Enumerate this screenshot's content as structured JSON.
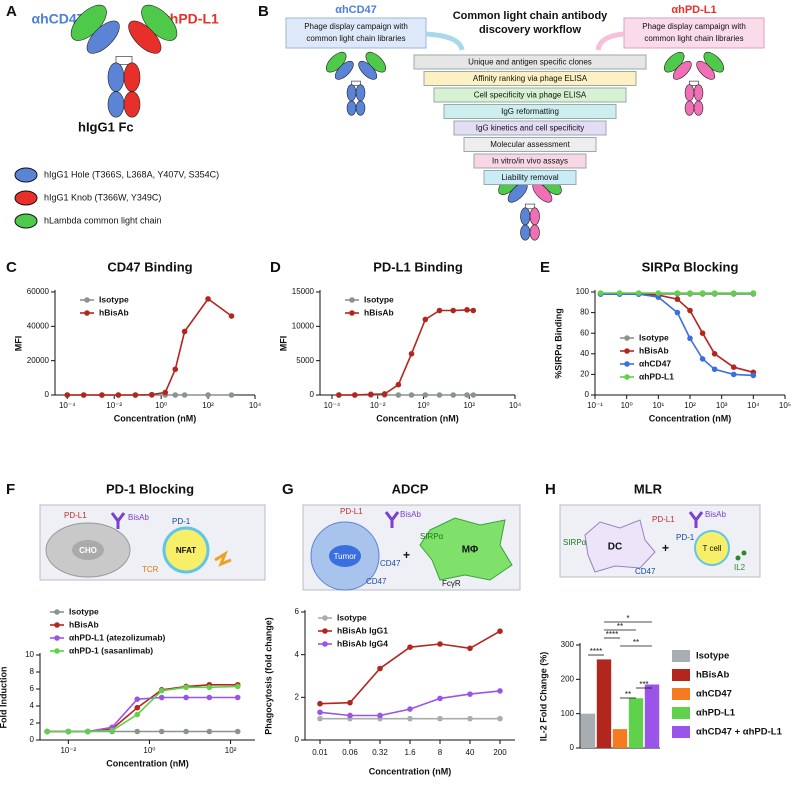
{
  "panel_labels": [
    "A",
    "B",
    "C",
    "D",
    "E",
    "F",
    "G",
    "H"
  ],
  "panel_a": {
    "antibody_labels": [
      "αhCD47",
      "αhPD-L1"
    ],
    "fc_label": "hIgG1 Fc",
    "legend": [
      "hIgG1 Hole (T366S, L368A, Y407V, S354C)",
      "hIgG1 Knob (T366W, Y349C)",
      "hLambda common light chain"
    ]
  },
  "panel_b": {
    "left": {
      "title": "αhCD47",
      "box": [
        "Phage display campaign with",
        "common light chain libraries"
      ]
    },
    "right": {
      "title": "αhPD-L1",
      "box": [
        "Phage display campaign with",
        "common light chain libraries"
      ]
    },
    "title": [
      "Common light chain antibody",
      "discovery workflow"
    ],
    "steps": [
      "Unique and antigen specific clones",
      "Affinity ranking via phage ELISA",
      "Cell specificity via phage ELISA",
      "IgG reformatting",
      "IgG kinetics and cell specificity",
      "Molecular assessment",
      "In vitro/in vivo assays",
      "Liability removal"
    ]
  },
  "panel_f_schematic": {
    "labels": [
      "PD-L1",
      "BisAb",
      "PD-1",
      "CHO",
      "NFAT",
      "TCR"
    ]
  },
  "panel_g_schematic": {
    "labels": [
      "PD-L1",
      "BisAb",
      "Tumor",
      "CD47",
      "CD47",
      "SIRPα",
      "MΦ",
      "FcγR",
      "+"
    ]
  },
  "panel_h_schematic": {
    "labels": [
      "SIRPα",
      "DC",
      "PD-L1",
      "BisAb",
      "CD47",
      "+",
      "PD-1",
      "T cell",
      "IL2"
    ]
  },
  "chart_data": [
    {
      "type": "line",
      "title": "CD47 Binding",
      "xlabel": "Concentration (nM)",
      "ylabel": "MFI",
      "xscale": "log",
      "xlim": [
        3e-05,
        10000
      ],
      "xticks": [
        {
          "value": 0.0001,
          "label": "10⁻⁴"
        },
        {
          "value": 0.01,
          "label": "10⁻²"
        },
        {
          "value": 1,
          "label": "10⁰"
        },
        {
          "value": 100,
          "label": "10²"
        },
        {
          "value": 10000,
          "label": "10⁴"
        }
      ],
      "ylim": [
        0,
        60000
      ],
      "yticks": [
        0,
        20000,
        40000,
        60000
      ],
      "legend": "upper left",
      "x": [
        0.0001,
        0.0005,
        0.003,
        0.015,
        0.08,
        0.4,
        1.5,
        4,
        10,
        100,
        1000
      ],
      "series": [
        {
          "name": "Isotype",
          "color": "#8a938e",
          "values": [
            0,
            0,
            0,
            0,
            0,
            0,
            0,
            0,
            0,
            0,
            0
          ]
        },
        {
          "name": "hBisAb",
          "color": "#b3261e",
          "values": [
            0,
            0,
            0,
            0,
            0,
            200,
            1500,
            15000,
            37000,
            56000,
            46000
          ]
        }
      ]
    },
    {
      "type": "line",
      "title": "PD-L1 Binding",
      "xlabel": "Concentration (nM)",
      "ylabel": "MFI",
      "xscale": "log",
      "xlim": [
        3e-05,
        10000
      ],
      "xticks": [
        {
          "value": 0.0001,
          "label": "10⁻⁴"
        },
        {
          "value": 0.01,
          "label": "10⁻²"
        },
        {
          "value": 1,
          "label": "10⁰"
        },
        {
          "value": 100,
          "label": "10²"
        },
        {
          "value": 10000,
          "label": "10⁴"
        }
      ],
      "ylim": [
        0,
        15000
      ],
      "yticks": [
        0,
        5000,
        10000,
        15000
      ],
      "legend": "upper left",
      "x": [
        0.0002,
        0.001,
        0.005,
        0.02,
        0.08,
        0.3,
        1.2,
        5,
        20,
        80,
        150
      ],
      "series": [
        {
          "name": "Isotype",
          "color": "#8a938e",
          "values": [
            0,
            0,
            0,
            0,
            0,
            0,
            0,
            0,
            0,
            0,
            0
          ]
        },
        {
          "name": "hBisAb",
          "color": "#b3261e",
          "values": [
            0,
            0,
            100,
            150,
            1500,
            6000,
            11000,
            12300,
            12300,
            12400,
            12300
          ]
        }
      ]
    },
    {
      "type": "line",
      "title": "SIRPα Blocking",
      "xlabel": "Concentration (nM)",
      "ylabel": "%SIRPα Binding",
      "xscale": "log",
      "xlim": [
        0.1,
        100000
      ],
      "xticks": [
        {
          "value": 0.1,
          "label": "10⁻¹"
        },
        {
          "value": 1,
          "label": "10⁰"
        },
        {
          "value": 10,
          "label": "10¹"
        },
        {
          "value": 100,
          "label": "10²"
        },
        {
          "value": 1000,
          "label": "10³"
        },
        {
          "value": 10000,
          "label": "10⁴"
        },
        {
          "value": 100000,
          "label": "10⁵"
        }
      ],
      "ylim": [
        0,
        100
      ],
      "yticks": [
        0,
        20,
        40,
        60,
        80,
        100
      ],
      "legend": "lower left",
      "x": [
        0.15,
        0.6,
        2.4,
        10,
        40,
        100,
        250,
        600,
        2400,
        10000
      ],
      "series": [
        {
          "name": "Isotype",
          "color": "#8a938e",
          "values": [
            98,
            98,
            98,
            98,
            98,
            98,
            98,
            98,
            98,
            98
          ]
        },
        {
          "name": "hBisAb",
          "color": "#b3261e",
          "values": [
            98,
            98,
            98,
            97,
            93,
            82,
            60,
            40,
            27,
            22
          ]
        },
        {
          "name": "αhCD47",
          "color": "#3b6fe0",
          "values": [
            98,
            98,
            98,
            95,
            80,
            55,
            35,
            25,
            20,
            19
          ]
        },
        {
          "name": "αhPD-L1",
          "color": "#5fd14a",
          "values": [
            99,
            99,
            99,
            99,
            99,
            99,
            99,
            99,
            99,
            99
          ]
        }
      ]
    },
    {
      "type": "line",
      "title": "PD-1 Blocking",
      "ylabel": "Fold Induction",
      "xlabel": "Concentration (nM)",
      "xscale": "log",
      "xlim": [
        0.002,
        400
      ],
      "xticks": [
        {
          "value": 0.01,
          "label": "10⁻²"
        },
        {
          "value": 1,
          "label": "10⁰"
        },
        {
          "value": 100,
          "label": "10²"
        }
      ],
      "ylim": [
        0,
        10
      ],
      "yticks": [
        0,
        2,
        4,
        6,
        8,
        10
      ],
      "legend": "upper left",
      "x": [
        0.003,
        0.01,
        0.03,
        0.12,
        0.5,
        2,
        8,
        30,
        150
      ],
      "series": [
        {
          "name": "Isotype",
          "color": "#8a938e",
          "values": [
            1,
            1,
            1,
            1,
            1,
            1,
            1,
            1,
            1
          ]
        },
        {
          "name": "hBisAb",
          "color": "#b3261e",
          "values": [
            1,
            1,
            1,
            1.3,
            3.8,
            5.9,
            6.3,
            6.5,
            6.5
          ]
        },
        {
          "name": "αhPD-L1 (atezolizumab)",
          "color": "#9a55e8",
          "values": [
            1,
            1,
            1,
            1.5,
            4.8,
            5,
            5,
            5,
            5
          ]
        },
        {
          "name": "αhPD-1 (sasanlimab)",
          "color": "#5fd14a",
          "values": [
            1,
            1,
            1,
            1.1,
            3,
            5.8,
            6.2,
            6.2,
            6.3
          ]
        }
      ]
    },
    {
      "type": "line",
      "title": "ADCP",
      "ylabel": "Phagocytosis (fold change)",
      "xlabel": "Concentration (nM)",
      "ylim": [
        0,
        6
      ],
      "yticks": [
        0,
        2,
        4,
        6
      ],
      "legend": "upper left",
      "categories": [
        "0.01",
        "0.06",
        "0.32",
        "1.6",
        "8",
        "40",
        "200"
      ],
      "series": [
        {
          "name": "Isotype",
          "color": "#a7adb0",
          "values": [
            1,
            1,
            1,
            1,
            1,
            1,
            1
          ]
        },
        {
          "name": "hBisAb IgG1",
          "color": "#b3261e",
          "values": [
            1.7,
            1.75,
            3.35,
            4.35,
            4.5,
            4.3,
            5.1
          ]
        },
        {
          "name": "hBisAb IgG4",
          "color": "#9a55e8",
          "values": [
            1.3,
            1.15,
            1.15,
            1.45,
            1.95,
            2.15,
            2.3
          ]
        }
      ]
    },
    {
      "type": "bar",
      "title": "MLR",
      "ylabel": "IL-2 Fold Change (%)",
      "ylim": [
        0,
        300
      ],
      "yticks": [
        0,
        100,
        200,
        300
      ],
      "legend": "right",
      "categories": [
        "Isotype",
        "hBisAb",
        "αhCD47",
        "αhPD-L1",
        "αhCD47 + αhPD-L1"
      ],
      "values": [
        100,
        258,
        55,
        145,
        185
      ],
      "colors": [
        "#a7adb0",
        "#b3261e",
        "#f47b20",
        "#5fd14a",
        "#9a55e8"
      ],
      "annotations": [
        "*",
        "**",
        "****",
        "**",
        "****",
        "***",
        "**"
      ]
    }
  ]
}
